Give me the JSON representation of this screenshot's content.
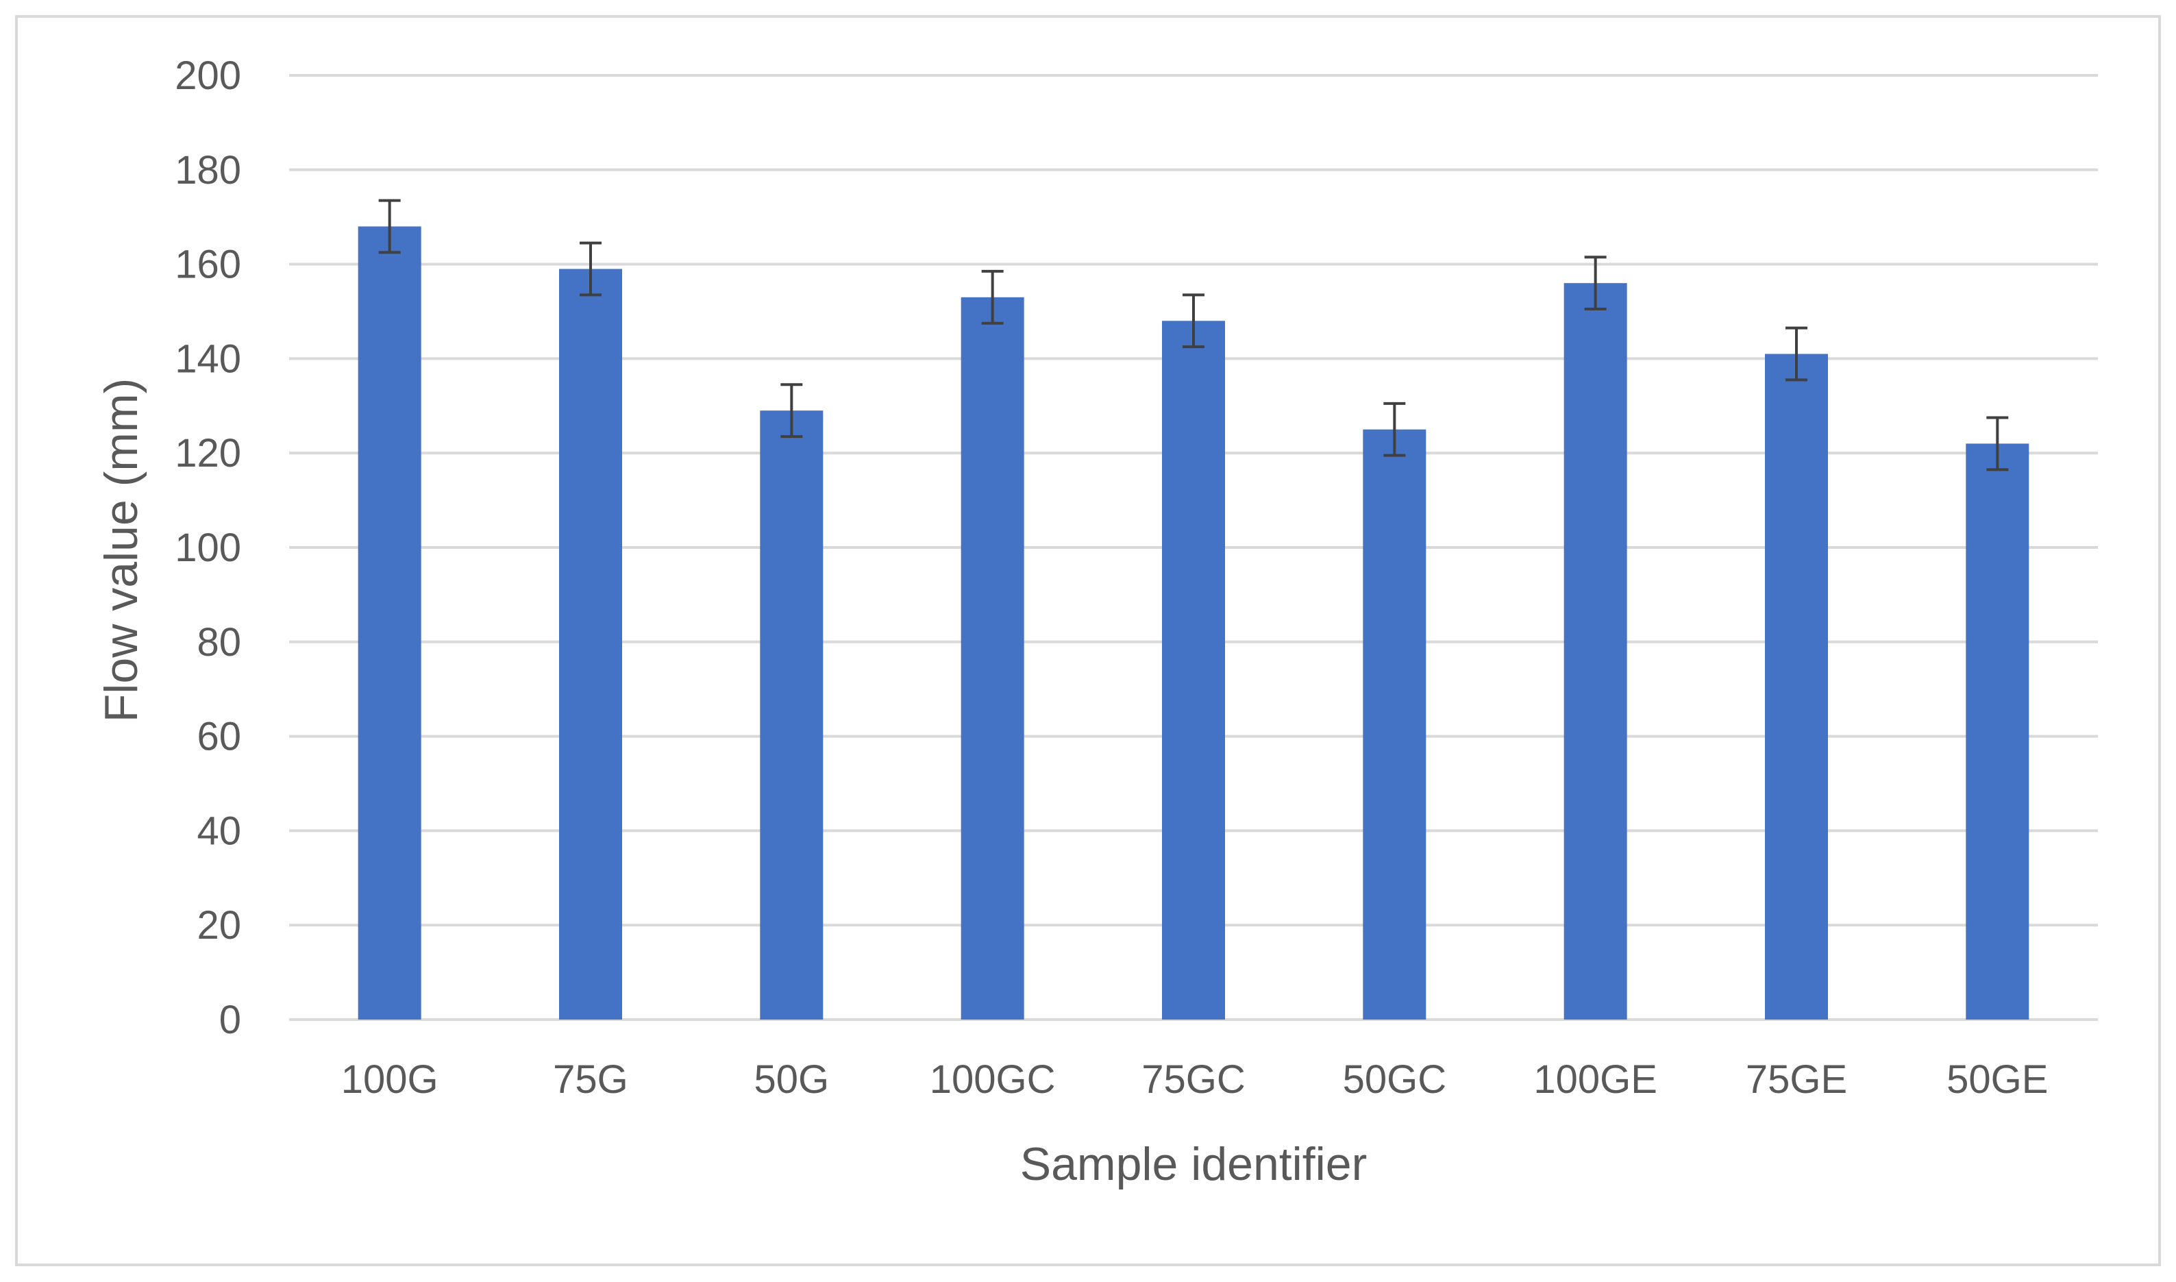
{
  "chart_data": {
    "type": "bar",
    "title": "",
    "xlabel": "Sample identifier",
    "ylabel": "Flow value (mm)",
    "categories": [
      "100G",
      "75G",
      "50G",
      "100GC",
      "75GC",
      "50GC",
      "100GE",
      "75GE",
      "50GE"
    ],
    "series": [
      {
        "values": [
          168,
          159,
          129,
          153,
          148,
          125,
          156,
          141,
          122
        ],
        "error": [
          5.5,
          5.5,
          5.5,
          5.5,
          5.5,
          5.5,
          5.5,
          5.5,
          5.5
        ],
        "color": "#4472c4"
      }
    ],
    "ylim": [
      0,
      200
    ],
    "yticks": [
      0,
      20,
      40,
      60,
      80,
      100,
      120,
      140,
      160,
      180,
      200
    ],
    "grid": true,
    "legend": "none",
    "colors": {
      "bar": "#4472c4",
      "error_bar": "#404040",
      "grid": "#d9d9d9",
      "text": "#595959",
      "frame": "#d9d9d9"
    }
  }
}
